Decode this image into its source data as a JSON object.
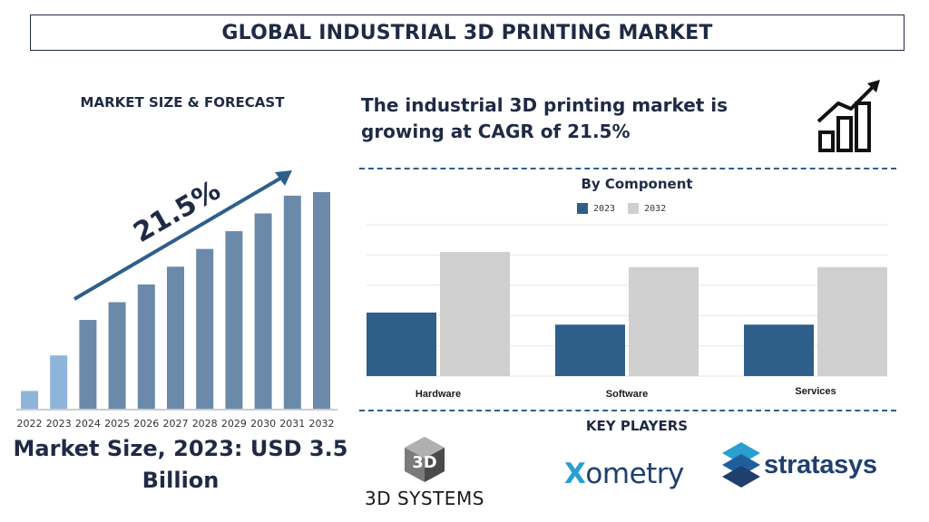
{
  "header": {
    "title": "GLOBAL INDUSTRIAL 3D PRINTING MARKET"
  },
  "left_panel": {
    "heading": "MARKET SIZE & FORECAST",
    "cagr_label": "21.5%",
    "market_size_text": "Market Size, 2023: USD 3.5 Billion"
  },
  "right_panel": {
    "cagr_statement": "The industrial 3D printing market is growing at CAGR of 21.5%",
    "icon": "growth-chart-icon",
    "key_players_heading": "KEY PLAYERS",
    "key_players": [
      "3D SYSTEMS",
      "Xometry",
      "stratasys"
    ]
  },
  "colors": {
    "navy": "#1f2a44",
    "bar_2022_2023": "#8fb4d9",
    "bar_forecast": "#6b8aaa",
    "series_2023": "#2e5f8a",
    "series_2032": "#d0d0d0"
  },
  "chart_data": [
    {
      "type": "bar",
      "title": "MARKET SIZE & FORECAST",
      "categories": [
        "2022",
        "2023",
        "2024",
        "2025",
        "2026",
        "2027",
        "2028",
        "2029",
        "2030",
        "2031",
        "2032"
      ],
      "values": [
        1.0,
        3.0,
        5.0,
        6.0,
        7.0,
        8.0,
        9.0,
        10.0,
        11.0,
        12.0,
        12.2
      ],
      "annotation": "21.5%",
      "grid": false,
      "note_values": "relative bar heights, no value axis printed"
    },
    {
      "type": "bar",
      "title": "By Component",
      "categories": [
        "Hardware",
        "Software",
        "Services"
      ],
      "series": [
        {
          "name": "2023",
          "values": [
            2.1,
            1.7,
            1.7
          ]
        },
        {
          "name": "2032",
          "values": [
            4.1,
            3.6,
            3.6
          ]
        }
      ],
      "ylim": [
        0,
        5
      ],
      "grid": true,
      "legend": "top-center"
    }
  ]
}
